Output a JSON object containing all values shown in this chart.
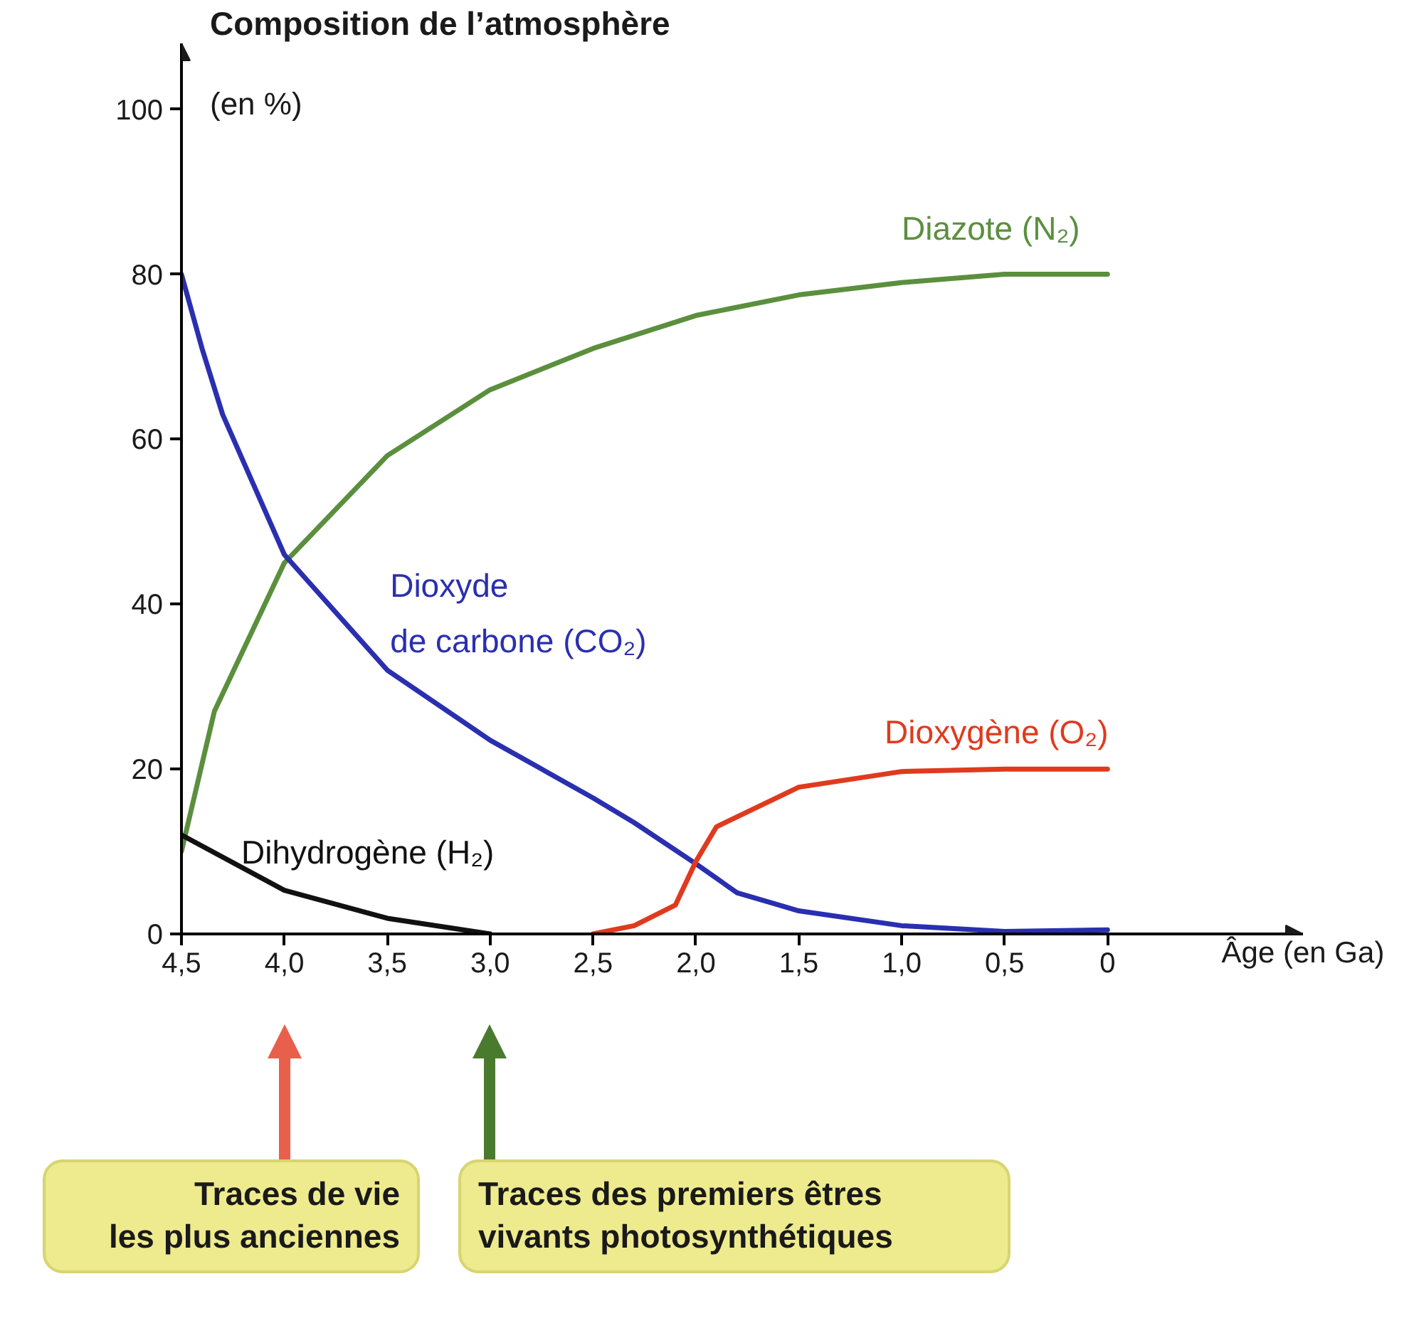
{
  "chart_data": {
    "type": "line",
    "ylabel": "Composition de l’atmosphère\n(en %)",
    "xlabel": "Âge (en Ga)",
    "xlim": [
      4.5,
      -0.95
    ],
    "ylim": [
      0,
      108
    ],
    "xticks": [
      {
        "value": 4.5,
        "label": "4,5"
      },
      {
        "value": 4.0,
        "label": "4,0"
      },
      {
        "value": 3.5,
        "label": "3,5"
      },
      {
        "value": 3.0,
        "label": "3,0"
      },
      {
        "value": 2.5,
        "label": "2,5"
      },
      {
        "value": 2.0,
        "label": "2,0"
      },
      {
        "value": 1.5,
        "label": "1,5"
      },
      {
        "value": 1.0,
        "label": "1,0"
      },
      {
        "value": 0.5,
        "label": "0,5"
      },
      0
    ],
    "yticks": [
      0,
      20,
      40,
      60,
      80,
      100
    ],
    "grid": false,
    "legend": false,
    "marker": "none",
    "line_style": "solid",
    "series": [
      {
        "name": "Diazote (N₂)",
        "color": "#5b8f3e",
        "x": [
          4.5,
          4.34,
          4.0,
          3.5,
          3.0,
          2.5,
          2.0,
          1.5,
          1.0,
          0.5,
          0
        ],
        "values": [
          10,
          27,
          45,
          58,
          66,
          71,
          75,
          77.5,
          79,
          80,
          80
        ]
      },
      {
        "name": "Dioxyde\nde carbone (CO₂)",
        "color": "#2a2fb0",
        "x": [
          4.5,
          4.4,
          4.3,
          4.0,
          3.5,
          3.0,
          2.5,
          2.3,
          2.0,
          1.8,
          1.5,
          1.0,
          0.5,
          0
        ],
        "values": [
          80,
          71,
          63,
          46,
          32,
          23.5,
          16.5,
          13.5,
          8.5,
          5,
          2.8,
          1,
          0.3,
          0.5
        ]
      },
      {
        "name": "Dioxygène (O₂)",
        "color": "#e03a1e",
        "x": [
          2.5,
          2.3,
          2.1,
          2.0,
          1.9,
          1.5,
          1.0,
          0.5,
          0
        ],
        "values": [
          0,
          1,
          3.5,
          8.8,
          13,
          17.8,
          19.7,
          20,
          20
        ]
      },
      {
        "name": "Dihydrogène (H₂)",
        "color": "#111111",
        "x": [
          4.5,
          4.0,
          3.5,
          3.0
        ],
        "values": [
          12,
          5.3,
          1.9,
          0
        ]
      }
    ],
    "annotations": [
      "Traces de vie\nles plus anciennes",
      "Traces des premiers êtres\nvivants photosynthétiques"
    ]
  }
}
